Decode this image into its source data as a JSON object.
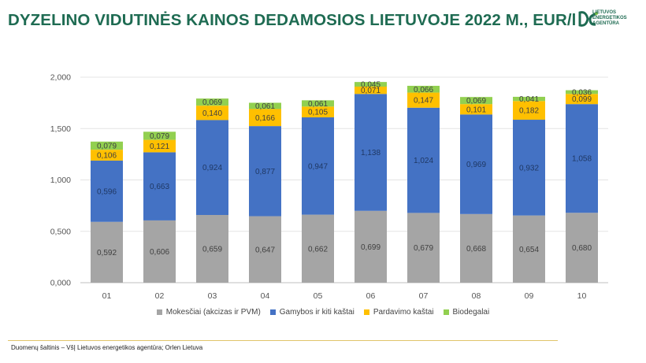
{
  "header": {
    "title": "DYZELINO VIDUTINĖS KAINOS DEDAMOSIOS LIETUVOJE 2022 M., EUR/l",
    "logo_line1": "LIETUVOS",
    "logo_line2": "ENERGETIKOS",
    "logo_line3": "AGENTŪRA"
  },
  "footer": {
    "source": "Duomenų šaltinis – VšĮ Lietuvos energetikos agentūra; Orlen Lietuva"
  },
  "chart_data": {
    "type": "bar",
    "stacked": true,
    "categories": [
      "01",
      "02",
      "03",
      "04",
      "05",
      "06",
      "07",
      "08",
      "09",
      "10"
    ],
    "ylim": [
      0,
      2
    ],
    "yticks": [
      "0,000",
      "0,500",
      "1,000",
      "1,500",
      "2,000"
    ],
    "grid": true,
    "legend_position": "bottom",
    "series": [
      {
        "name": "Mokesčiai (akcizas ir PVM)",
        "color": "#a5a5a5",
        "values": [
          0.592,
          0.606,
          0.659,
          0.647,
          0.662,
          0.699,
          0.679,
          0.668,
          0.654,
          0.68
        ],
        "labels": [
          "0,592",
          "0,606",
          "0,659",
          "0,647",
          "0,662",
          "0,699",
          "0,679",
          "0,668",
          "0,654",
          "0,680"
        ]
      },
      {
        "name": "Gamybos ir kiti kaštai",
        "color": "#4472c4",
        "values": [
          0.596,
          0.663,
          0.924,
          0.877,
          0.947,
          1.138,
          1.024,
          0.969,
          0.932,
          1.058
        ],
        "labels": [
          "0,596",
          "0,663",
          "0,924",
          "0,877",
          "0,947",
          "1,138",
          "1,024",
          "0,969",
          "0,932",
          "1,058"
        ]
      },
      {
        "name": "Pardavimo kaštai",
        "color": "#ffc000",
        "values": [
          0.106,
          0.121,
          0.14,
          0.166,
          0.105,
          0.071,
          0.147,
          0.101,
          0.182,
          0.099
        ],
        "labels": [
          "0,106",
          "0,121",
          "0,140",
          "0,166",
          "0,105",
          "0,071",
          "0,147",
          "0,101",
          "0,182",
          "0,099"
        ]
      },
      {
        "name": "Biodegalai",
        "color": "#92d050",
        "values": [
          0.079,
          0.079,
          0.069,
          0.061,
          0.061,
          0.045,
          0.066,
          0.069,
          0.041,
          0.036
        ],
        "labels": [
          "0,079",
          "0,079",
          "0,069",
          "0,061",
          "0,061",
          "0,045",
          "0,066",
          "0,069",
          "0,041",
          "0,036"
        ]
      }
    ]
  }
}
